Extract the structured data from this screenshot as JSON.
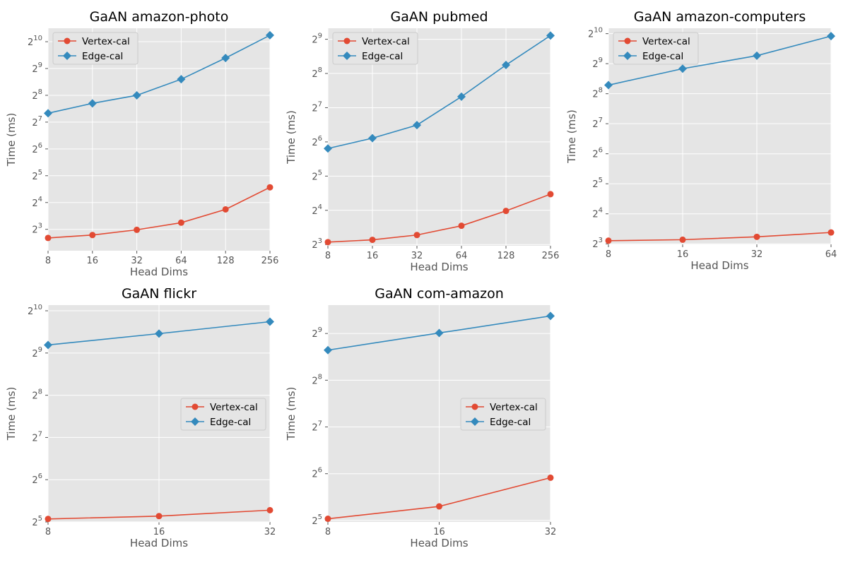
{
  "colors": {
    "vertex": "#E24A33",
    "edge": "#348ABD"
  },
  "chart_data": [
    {
      "type": "line",
      "title": "GaAN amazon-photo",
      "xlabel": "Head Dims",
      "ylabel": "Time (ms)",
      "x": [
        8,
        16,
        32,
        64,
        128,
        256
      ],
      "xticks": [
        "8",
        "16",
        "32",
        "64",
        "128",
        "256"
      ],
      "yscale": "log2",
      "ylim": [
        4.6,
        1450
      ],
      "yticks_exp": [
        3,
        4,
        5,
        6,
        7,
        8,
        9,
        10
      ],
      "grid": true,
      "legend": "upper left",
      "series": [
        {
          "name": "Vertex-cal",
          "marker": "circle",
          "values": [
            6.4,
            6.9,
            7.9,
            9.5,
            13.4,
            23.7
          ]
        },
        {
          "name": "Edge-cal",
          "marker": "diamond",
          "values": [
            161,
            208,
            256,
            388,
            672,
            1210
          ]
        }
      ]
    },
    {
      "type": "line",
      "title": "GaAN pubmed",
      "xlabel": "Head Dims",
      "ylabel": "Time (ms)",
      "x": [
        8,
        16,
        32,
        64,
        128,
        256
      ],
      "xticks": [
        "8",
        "16",
        "32",
        "64",
        "128",
        "256"
      ],
      "yscale": "log2",
      "ylim": [
        7.8,
        640
      ],
      "yticks_exp": [
        3,
        4,
        5,
        6,
        7,
        8,
        9
      ],
      "grid": true,
      "legend": "upper left",
      "series": [
        {
          "name": "Vertex-cal",
          "marker": "circle",
          "values": [
            8.4,
            8.8,
            9.7,
            11.7,
            15.8,
            22.2
          ]
        },
        {
          "name": "Edge-cal",
          "marker": "diamond",
          "values": [
            56,
            69,
            90,
            160,
            304,
            552
          ]
        }
      ]
    },
    {
      "type": "line",
      "title": "GaAN amazon-computers",
      "xlabel": "Head Dims",
      "ylabel": "Time (ms)",
      "x": [
        8,
        16,
        32,
        64
      ],
      "xticks": [
        "8",
        "16",
        "32",
        "64"
      ],
      "yscale": "log2",
      "ylim": [
        7.9,
        1160
      ],
      "yticks_exp": [
        3,
        4,
        5,
        6,
        7,
        8,
        9,
        10
      ],
      "grid": true,
      "legend": "upper left",
      "series": [
        {
          "name": "Vertex-cal",
          "marker": "circle",
          "values": [
            8.6,
            8.8,
            9.4,
            10.4
          ]
        },
        {
          "name": "Edge-cal",
          "marker": "diamond",
          "values": [
            312,
            456,
            616,
            968
          ]
        }
      ]
    },
    {
      "type": "line",
      "title": "GaAN flickr",
      "xlabel": "Head Dims",
      "ylabel": "Time (ms)",
      "x": [
        8,
        16,
        32
      ],
      "xticks": [
        "8",
        "16",
        "32"
      ],
      "yscale": "log2",
      "ylim": [
        32,
        1124
      ],
      "yticks_exp": [
        5,
        6,
        7,
        8,
        9,
        10
      ],
      "grid": true,
      "legend": "center right",
      "series": [
        {
          "name": "Vertex-cal",
          "marker": "circle",
          "values": [
            33.6,
            35.2,
            38.8
          ]
        },
        {
          "name": "Edge-cal",
          "marker": "diamond",
          "values": [
            584,
            704,
            856
          ]
        }
      ]
    },
    {
      "type": "line",
      "title": "GaAN com-amazon",
      "xlabel": "Head Dims",
      "ylabel": "Time (ms)",
      "x": [
        8,
        16,
        32
      ],
      "xticks": [
        "8",
        "16",
        "32"
      ],
      "yscale": "log2",
      "ylim": [
        31.3,
        780
      ],
      "yticks_exp": [
        5,
        6,
        7,
        8,
        9
      ],
      "grid": true,
      "legend": "center right",
      "series": [
        {
          "name": "Vertex-cal",
          "marker": "circle",
          "values": [
            32.8,
            39.4,
            60.3
          ]
        },
        {
          "name": "Edge-cal",
          "marker": "diamond",
          "values": [
            400,
            516,
            664
          ]
        }
      ]
    }
  ]
}
